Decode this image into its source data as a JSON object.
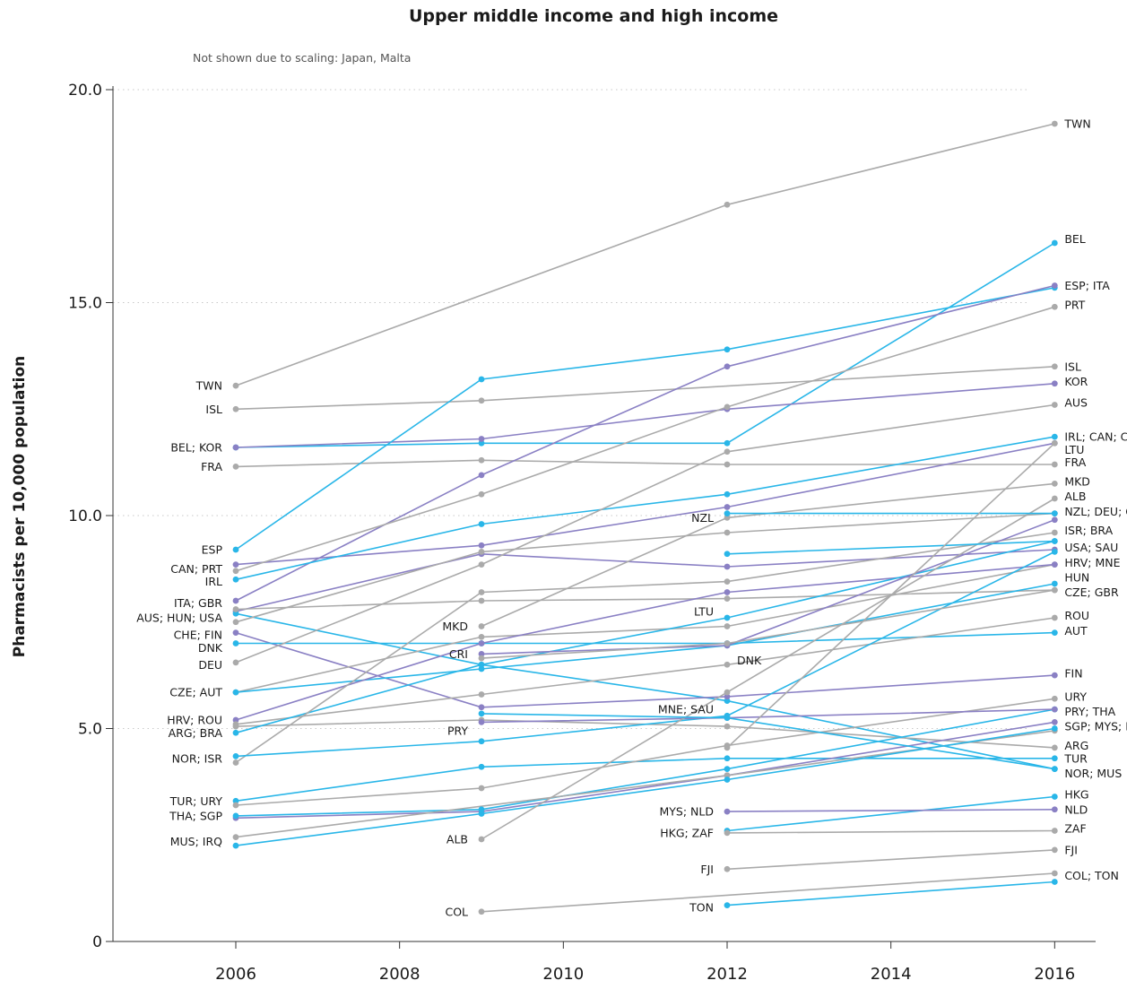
{
  "chart_data": {
    "type": "line",
    "title": "Upper middle income and high income",
    "subtitle": "Not shown due to scaling: Japan, Malta",
    "ylabel": "Pharmacists per 10,000 population",
    "xlabel": "",
    "xlim": [
      2004.5,
      2016.5
    ],
    "ylim": [
      0,
      20
    ],
    "xticks": [
      "2006",
      "2008",
      "2010",
      "2012",
      "2014",
      "2016"
    ],
    "yticks": [
      "0",
      "5.0",
      "10.0",
      "15.0",
      "20.0"
    ],
    "grid": "horizontal dotted",
    "colors": {
      "grey": "#aaaaaa",
      "blue": "#29b6e8",
      "purple": "#8a80c4"
    },
    "series": [
      {
        "color": "grey",
        "points": [
          [
            2006,
            13.05
          ],
          [
            2012,
            17.3
          ],
          [
            2016,
            19.2
          ]
        ]
      },
      {
        "color": "grey",
        "points": [
          [
            2006,
            12.5
          ],
          [
            2009,
            12.7
          ],
          [
            2016,
            13.5
          ]
        ]
      },
      {
        "color": "blue",
        "points": [
          [
            2006,
            11.6
          ],
          [
            2009,
            11.7
          ],
          [
            2012,
            11.7
          ],
          [
            2016,
            16.4
          ]
        ]
      },
      {
        "color": "purple",
        "points": [
          [
            2006,
            11.6
          ],
          [
            2009,
            11.8
          ],
          [
            2012,
            12.5
          ],
          [
            2016,
            13.1
          ]
        ]
      },
      {
        "color": "grey",
        "points": [
          [
            2006,
            11.15
          ],
          [
            2009,
            11.3
          ],
          [
            2012,
            11.2
          ],
          [
            2016,
            11.2
          ]
        ]
      },
      {
        "color": "blue",
        "points": [
          [
            2006,
            9.2
          ],
          [
            2009,
            13.2
          ],
          [
            2012,
            13.9
          ],
          [
            2016,
            15.35
          ]
        ]
      },
      {
        "color": "purple",
        "points": [
          [
            2006,
            8.0
          ],
          [
            2009,
            10.95
          ],
          [
            2012,
            13.5
          ],
          [
            2016,
            15.4
          ]
        ]
      },
      {
        "color": "purple",
        "points": [
          [
            2006,
            8.85
          ],
          [
            2009,
            9.3
          ],
          [
            2012,
            10.2
          ],
          [
            2016,
            11.7
          ]
        ]
      },
      {
        "color": "grey",
        "points": [
          [
            2006,
            8.7
          ],
          [
            2009,
            10.5
          ],
          [
            2012,
            12.55
          ],
          [
            2016,
            14.9
          ]
        ]
      },
      {
        "color": "blue",
        "points": [
          [
            2006,
            8.5
          ],
          [
            2009,
            9.8
          ],
          [
            2012,
            10.5
          ],
          [
            2016,
            11.85
          ]
        ]
      },
      {
        "color": "purple",
        "points": [
          [
            2006,
            7.75
          ],
          [
            2009,
            9.1
          ],
          [
            2012,
            8.8
          ],
          [
            2016,
            9.2
          ]
        ]
      },
      {
        "color": "blue",
        "points": [
          [
            2006,
            7.7
          ],
          [
            2009,
            6.5
          ],
          [
            2012,
            5.65
          ],
          [
            2016,
            4.05
          ]
        ]
      },
      {
        "color": "grey",
        "points": [
          [
            2006,
            7.8
          ],
          [
            2009,
            8.0
          ],
          [
            2012,
            8.05
          ],
          [
            2016,
            8.25
          ]
        ]
      },
      {
        "color": "purple",
        "points": [
          [
            2006,
            7.25
          ],
          [
            2009,
            5.5
          ],
          [
            2012,
            5.75
          ],
          [
            2016,
            6.25
          ]
        ]
      },
      {
        "color": "grey",
        "points": [
          [
            2006,
            7.5
          ],
          [
            2009,
            9.15
          ],
          [
            2012,
            9.6
          ],
          [
            2016,
            10.05
          ]
        ]
      },
      {
        "color": "blue",
        "points": [
          [
            2006,
            7.0
          ],
          [
            2009,
            7.0
          ],
          [
            2012,
            7.0
          ],
          [
            2016,
            7.25
          ]
        ]
      },
      {
        "color": "grey",
        "points": [
          [
            2006,
            6.55
          ],
          [
            2009,
            8.85
          ],
          [
            2012,
            11.5
          ],
          [
            2016,
            12.6
          ]
        ]
      },
      {
        "color": "grey",
        "points": [
          [
            2006,
            5.85
          ],
          [
            2009,
            7.15
          ],
          [
            2012,
            7.4
          ],
          [
            2016,
            8.85
          ]
        ]
      },
      {
        "color": "blue",
        "points": [
          [
            2006,
            5.85
          ],
          [
            2009,
            6.4
          ],
          [
            2012,
            6.95
          ],
          [
            2016,
            8.4
          ]
        ]
      },
      {
        "color": "purple",
        "points": [
          [
            2006,
            5.2
          ],
          [
            2009,
            7.0
          ],
          [
            2012,
            8.2
          ],
          [
            2016,
            8.85
          ]
        ]
      },
      {
        "color": "grey",
        "points": [
          [
            2006,
            5.1
          ],
          [
            2009,
            5.8
          ],
          [
            2012,
            6.5
          ],
          [
            2016,
            7.6
          ]
        ]
      },
      {
        "color": "grey",
        "points": [
          [
            2006,
            5.05
          ],
          [
            2009,
            5.2
          ],
          [
            2012,
            5.05
          ],
          [
            2016,
            4.55
          ]
        ]
      },
      {
        "color": "blue",
        "points": [
          [
            2006,
            4.9
          ],
          [
            2009,
            6.5
          ],
          [
            2012,
            7.6
          ],
          [
            2016,
            9.4
          ]
        ]
      },
      {
        "color": "grey",
        "points": [
          [
            2006,
            4.2
          ],
          [
            2009,
            8.2
          ],
          [
            2012,
            8.45
          ],
          [
            2016,
            9.6
          ]
        ]
      },
      {
        "color": "blue",
        "points": [
          [
            2006,
            4.35
          ],
          [
            2009,
            4.7
          ],
          [
            2012,
            5.3
          ],
          [
            2016,
            9.15
          ]
        ]
      },
      {
        "color": "blue",
        "points": [
          [
            2006,
            3.3
          ],
          [
            2009,
            4.1
          ],
          [
            2012,
            4.3
          ],
          [
            2016,
            4.3
          ]
        ]
      },
      {
        "color": "grey",
        "points": [
          [
            2006,
            3.2
          ],
          [
            2009,
            3.6
          ],
          [
            2012,
            4.6
          ],
          [
            2016,
            5.7
          ]
        ]
      },
      {
        "color": "purple",
        "points": [
          [
            2006,
            2.9
          ],
          [
            2009,
            3.05
          ],
          [
            2012,
            3.9
          ],
          [
            2016,
            5.15
          ]
        ]
      },
      {
        "color": "blue",
        "points": [
          [
            2006,
            2.95
          ],
          [
            2009,
            3.1
          ],
          [
            2012,
            4.05
          ],
          [
            2016,
            5.45
          ]
        ]
      },
      {
        "color": "grey",
        "points": [
          [
            2006,
            2.45
          ],
          [
            2012,
            3.9
          ],
          [
            2016,
            4.95
          ]
        ]
      },
      {
        "color": "blue",
        "points": [
          [
            2006,
            2.25
          ],
          [
            2009,
            3.0
          ],
          [
            2012,
            3.8
          ],
          [
            2016,
            5.0
          ]
        ]
      },
      {
        "color": "grey",
        "points": [
          [
            2009,
            7.4
          ],
          [
            2012,
            9.95
          ],
          [
            2016,
            10.75
          ]
        ]
      },
      {
        "color": "purple",
        "points": [
          [
            2009,
            6.75
          ],
          [
            2012,
            6.95
          ],
          [
            2016,
            9.9
          ]
        ]
      },
      {
        "color": "grey",
        "points": [
          [
            2009,
            6.65
          ],
          [
            2012,
            7.0
          ],
          [
            2016,
            8.25
          ]
        ]
      },
      {
        "color": "purple",
        "points": [
          [
            2009,
            5.15
          ],
          [
            2012,
            5.25
          ],
          [
            2016,
            5.45
          ]
        ]
      },
      {
        "color": "grey",
        "points": [
          [
            2009,
            2.4
          ],
          [
            2012,
            5.85
          ],
          [
            2016,
            10.4
          ]
        ]
      },
      {
        "color": "grey",
        "points": [
          [
            2009,
            0.7
          ],
          [
            2016,
            1.6
          ]
        ]
      },
      {
        "color": "blue",
        "points": [
          [
            2009,
            5.35
          ],
          [
            2012,
            5.25
          ],
          [
            2016,
            4.05
          ]
        ]
      },
      {
        "color": "blue",
        "points": [
          [
            2012,
            10.05
          ],
          [
            2016,
            10.05
          ]
        ]
      },
      {
        "color": "blue",
        "points": [
          [
            2012,
            9.1
          ],
          [
            2016,
            9.4
          ]
        ]
      },
      {
        "color": "blue",
        "points": [
          [
            2012,
            2.6
          ],
          [
            2016,
            3.4
          ]
        ]
      },
      {
        "color": "grey",
        "points": [
          [
            2012,
            2.55
          ],
          [
            2016,
            2.6
          ]
        ]
      },
      {
        "color": "purple",
        "points": [
          [
            2012,
            3.05
          ],
          [
            2016,
            3.1
          ]
        ]
      },
      {
        "color": "grey",
        "points": [
          [
            2012,
            1.7
          ],
          [
            2016,
            2.15
          ]
        ]
      },
      {
        "color": "blue",
        "points": [
          [
            2012,
            0.85
          ],
          [
            2016,
            1.4
          ]
        ]
      },
      {
        "color": "grey",
        "points": [
          [
            2012,
            4.55
          ],
          [
            2016,
            11.7
          ]
        ]
      }
    ],
    "labels": [
      {
        "text": "TWN",
        "x": 2006,
        "y": 13.05,
        "side": "left"
      },
      {
        "text": "ISL",
        "x": 2006,
        "y": 12.5,
        "side": "left"
      },
      {
        "text": "BEL; KOR",
        "x": 2006,
        "y": 11.6,
        "side": "left"
      },
      {
        "text": "FRA",
        "x": 2006,
        "y": 11.15,
        "side": "left"
      },
      {
        "text": "ESP",
        "x": 2006,
        "y": 9.2,
        "side": "left"
      },
      {
        "text": "CAN; PRT",
        "x": 2006,
        "y": 8.75,
        "side": "left"
      },
      {
        "text": "IRL",
        "x": 2006,
        "y": 8.45,
        "side": "left"
      },
      {
        "text": "ITA; GBR",
        "x": 2006,
        "y": 7.95,
        "side": "left"
      },
      {
        "text": "AUS; HUN; USA",
        "x": 2006,
        "y": 7.6,
        "side": "left"
      },
      {
        "text": "CHE; FIN",
        "x": 2006,
        "y": 7.2,
        "side": "left"
      },
      {
        "text": "DNK",
        "x": 2006,
        "y": 6.9,
        "side": "left"
      },
      {
        "text": "DEU",
        "x": 2006,
        "y": 6.5,
        "side": "left"
      },
      {
        "text": "CZE; AUT",
        "x": 2006,
        "y": 5.85,
        "side": "left"
      },
      {
        "text": "HRV; ROU",
        "x": 2006,
        "y": 5.2,
        "side": "left"
      },
      {
        "text": "ARG; BRA",
        "x": 2006,
        "y": 4.9,
        "side": "left"
      },
      {
        "text": "NOR; ISR",
        "x": 2006,
        "y": 4.3,
        "side": "left"
      },
      {
        "text": "TUR; URY",
        "x": 2006,
        "y": 3.3,
        "side": "left"
      },
      {
        "text": "THA; SGP",
        "x": 2006,
        "y": 2.95,
        "side": "left"
      },
      {
        "text": "MUS; IRQ",
        "x": 2006,
        "y": 2.35,
        "side": "left"
      },
      {
        "text": "MKD",
        "x": 2009,
        "y": 7.4,
        "side": "left"
      },
      {
        "text": "CRI",
        "x": 2009,
        "y": 6.75,
        "side": "left"
      },
      {
        "text": "PRY",
        "x": 2009,
        "y": 4.95,
        "side": "left"
      },
      {
        "text": "ALB",
        "x": 2009,
        "y": 2.4,
        "side": "left"
      },
      {
        "text": "COL",
        "x": 2009,
        "y": 0.7,
        "side": "left"
      },
      {
        "text": "NZL",
        "x": 2012,
        "y": 9.95,
        "side": "left"
      },
      {
        "text": "LTU",
        "x": 2012,
        "y": 7.75,
        "side": "left"
      },
      {
        "text": "DNK",
        "x": 2012,
        "y": 6.6,
        "side": "right"
      },
      {
        "text": "MNE; SAU",
        "x": 2012,
        "y": 5.45,
        "side": "left"
      },
      {
        "text": "MYS; NLD",
        "x": 2012,
        "y": 3.05,
        "side": "left"
      },
      {
        "text": "HKG; ZAF",
        "x": 2012,
        "y": 2.55,
        "side": "left"
      },
      {
        "text": "FJI",
        "x": 2012,
        "y": 1.7,
        "side": "left"
      },
      {
        "text": "TON",
        "x": 2012,
        "y": 0.8,
        "side": "left"
      },
      {
        "text": "TWN",
        "x": 2016,
        "y": 19.2,
        "side": "right"
      },
      {
        "text": "BEL",
        "x": 2016,
        "y": 16.5,
        "side": "right"
      },
      {
        "text": "ESP; ITA",
        "x": 2016,
        "y": 15.4,
        "side": "right"
      },
      {
        "text": "PRT",
        "x": 2016,
        "y": 14.95,
        "side": "right"
      },
      {
        "text": "ISL",
        "x": 2016,
        "y": 13.5,
        "side": "right"
      },
      {
        "text": "KOR",
        "x": 2016,
        "y": 13.15,
        "side": "right"
      },
      {
        "text": "AUS",
        "x": 2016,
        "y": 12.65,
        "side": "right"
      },
      {
        "text": "IRL; CAN; CHE",
        "x": 2016,
        "y": 11.85,
        "side": "right"
      },
      {
        "text": "LTU",
        "x": 2016,
        "y": 11.55,
        "side": "right"
      },
      {
        "text": "FRA",
        "x": 2016,
        "y": 11.25,
        "side": "right"
      },
      {
        "text": "MKD",
        "x": 2016,
        "y": 10.8,
        "side": "right"
      },
      {
        "text": "ALB",
        "x": 2016,
        "y": 10.45,
        "side": "right"
      },
      {
        "text": "NZL; DEU; CRI",
        "x": 2016,
        "y": 10.1,
        "side": "right"
      },
      {
        "text": "ISR; BRA",
        "x": 2016,
        "y": 9.65,
        "side": "right"
      },
      {
        "text": "USA; SAU",
        "x": 2016,
        "y": 9.25,
        "side": "right"
      },
      {
        "text": "HRV; MNE",
        "x": 2016,
        "y": 8.9,
        "side": "right"
      },
      {
        "text": "HUN",
        "x": 2016,
        "y": 8.55,
        "side": "right"
      },
      {
        "text": "CZE; GBR",
        "x": 2016,
        "y": 8.2,
        "side": "right"
      },
      {
        "text": "ROU",
        "x": 2016,
        "y": 7.65,
        "side": "right"
      },
      {
        "text": "AUT",
        "x": 2016,
        "y": 7.3,
        "side": "right"
      },
      {
        "text": "FIN",
        "x": 2016,
        "y": 6.3,
        "side": "right"
      },
      {
        "text": "URY",
        "x": 2016,
        "y": 5.75,
        "side": "right"
      },
      {
        "text": "PRY; THA",
        "x": 2016,
        "y": 5.4,
        "side": "right"
      },
      {
        "text": "SGP; MYS; IRQ",
        "x": 2016,
        "y": 5.05,
        "side": "right"
      },
      {
        "text": "ARG",
        "x": 2016,
        "y": 4.6,
        "side": "right"
      },
      {
        "text": "TUR",
        "x": 2016,
        "y": 4.3,
        "side": "right"
      },
      {
        "text": "NOR; MUS",
        "x": 2016,
        "y": 3.95,
        "side": "right"
      },
      {
        "text": "HKG",
        "x": 2016,
        "y": 3.45,
        "side": "right"
      },
      {
        "text": "NLD",
        "x": 2016,
        "y": 3.1,
        "side": "right"
      },
      {
        "text": "ZAF",
        "x": 2016,
        "y": 2.65,
        "side": "right"
      },
      {
        "text": "FJI",
        "x": 2016,
        "y": 2.15,
        "side": "right"
      },
      {
        "text": "COL; TON",
        "x": 2016,
        "y": 1.55,
        "side": "right"
      }
    ]
  }
}
